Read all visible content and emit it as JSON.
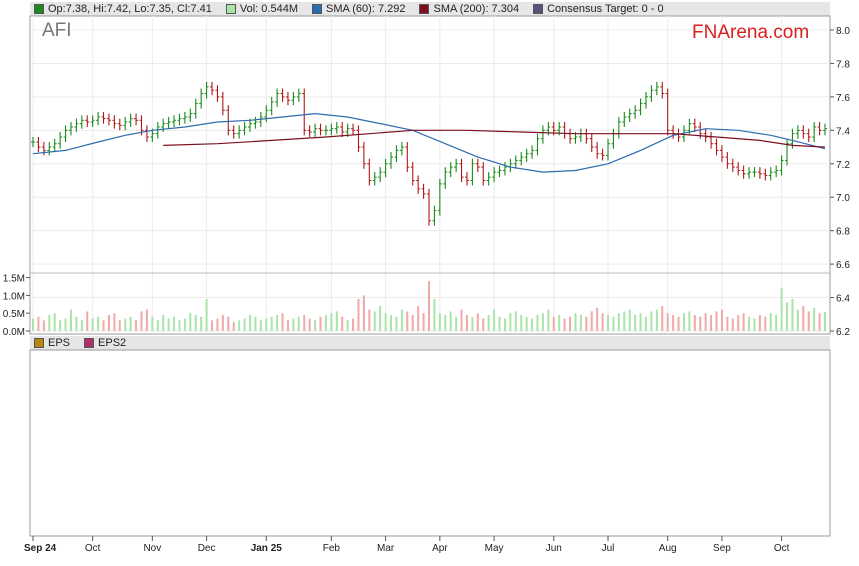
{
  "ticker": "AFI",
  "brand": "FNArena.com",
  "legend_top": [
    {
      "label": "Op:7.38, Hi:7.42, Lo:7.35, Cl:7.41",
      "color": "#1a8a1a"
    },
    {
      "label": "Vol: 0.544M",
      "color": "#a6e6a6"
    },
    {
      "label": "SMA (60): 7.292",
      "color": "#2b6cb0"
    },
    {
      "label": "SMA (200): 7.304",
      "color": "#7a1020"
    },
    {
      "label": "Consensus Target: 0 - 0",
      "color": "#555577"
    }
  ],
  "legend_bottom": [
    {
      "label": "EPS",
      "color": "#b8860b"
    },
    {
      "label": "EPS2",
      "color": "#b03070"
    }
  ],
  "chart_data": {
    "type": "line",
    "price_axis": {
      "min": 6.2,
      "max": 8.0,
      "ticks": [
        "8.0",
        "7.8",
        "7.6",
        "7.4",
        "7.2",
        "7.0",
        "6.8",
        "6.6",
        "6.4",
        "6.2"
      ]
    },
    "volume_axis": {
      "min": 0,
      "max": 1.6,
      "ticks": [
        "1.5M",
        "1.0M",
        "0.5M",
        "0.0M"
      ]
    },
    "months": [
      {
        "label": "Sep 24",
        "bold": true,
        "x": 0
      },
      {
        "label": "Oct",
        "bold": false,
        "x": 11
      },
      {
        "label": "Nov",
        "bold": false,
        "x": 22
      },
      {
        "label": "Dec",
        "bold": false,
        "x": 32
      },
      {
        "label": "Jan 25",
        "bold": true,
        "x": 43
      },
      {
        "label": "Feb",
        "bold": false,
        "x": 55
      },
      {
        "label": "Mar",
        "bold": false,
        "x": 65
      },
      {
        "label": "Apr",
        "bold": false,
        "x": 75
      },
      {
        "label": "May",
        "bold": false,
        "x": 85
      },
      {
        "label": "Jun",
        "bold": false,
        "x": 96
      },
      {
        "label": "Jul",
        "bold": false,
        "x": 106
      },
      {
        "label": "Aug",
        "bold": false,
        "x": 117
      },
      {
        "label": "Sep",
        "bold": false,
        "x": 127
      },
      {
        "label": "Oct",
        "bold": false,
        "x": 138
      }
    ],
    "x_count": 147,
    "close": [
      7.33,
      7.3,
      7.28,
      7.3,
      7.32,
      7.36,
      7.4,
      7.42,
      7.44,
      7.46,
      7.45,
      7.46,
      7.48,
      7.47,
      7.46,
      7.44,
      7.43,
      7.45,
      7.47,
      7.46,
      7.4,
      7.36,
      7.38,
      7.42,
      7.44,
      7.45,
      7.46,
      7.47,
      7.48,
      7.5,
      7.56,
      7.62,
      7.66,
      7.64,
      7.6,
      7.52,
      7.4,
      7.38,
      7.4,
      7.42,
      7.44,
      7.45,
      7.48,
      7.52,
      7.57,
      7.62,
      7.6,
      7.58,
      7.6,
      7.62,
      7.4,
      7.39,
      7.41,
      7.4,
      7.4,
      7.41,
      7.42,
      7.39,
      7.41,
      7.4,
      7.3,
      7.2,
      7.1,
      7.12,
      7.15,
      7.2,
      7.24,
      7.28,
      7.3,
      7.18,
      7.1,
      7.05,
      7.02,
      6.86,
      6.92,
      7.08,
      7.15,
      7.18,
      7.2,
      7.12,
      7.1,
      7.2,
      7.18,
      7.1,
      7.12,
      7.15,
      7.16,
      7.18,
      7.2,
      7.22,
      7.24,
      7.26,
      7.28,
      7.35,
      7.4,
      7.42,
      7.4,
      7.42,
      7.38,
      7.35,
      7.36,
      7.38,
      7.35,
      7.3,
      7.26,
      7.25,
      7.32,
      7.38,
      7.45,
      7.48,
      7.5,
      7.52,
      7.56,
      7.6,
      7.64,
      7.66,
      7.62,
      7.4,
      7.38,
      7.36,
      7.4,
      7.44,
      7.42,
      7.38,
      7.36,
      7.32,
      7.28,
      7.24,
      7.2,
      7.18,
      7.16,
      7.14,
      7.15,
      7.15,
      7.14,
      7.13,
      7.15,
      7.16,
      7.22,
      7.32,
      7.38,
      7.4,
      7.38,
      7.36,
      7.42,
      7.4,
      7.41
    ],
    "volume": [
      0.35,
      0.4,
      0.3,
      0.45,
      0.5,
      0.3,
      0.35,
      0.6,
      0.4,
      0.3,
      0.55,
      0.35,
      0.4,
      0.3,
      0.45,
      0.5,
      0.3,
      0.35,
      0.4,
      0.3,
      0.55,
      0.6,
      0.4,
      0.3,
      0.45,
      0.35,
      0.4,
      0.3,
      0.35,
      0.5,
      0.45,
      0.4,
      0.9,
      0.3,
      0.35,
      0.45,
      0.4,
      0.25,
      0.3,
      0.35,
      0.45,
      0.4,
      0.3,
      0.35,
      0.4,
      0.45,
      0.5,
      0.3,
      0.35,
      0.4,
      0.45,
      0.35,
      0.3,
      0.4,
      0.45,
      0.5,
      0.55,
      0.4,
      0.3,
      0.35,
      0.9,
      1.0,
      0.6,
      0.55,
      0.7,
      0.5,
      0.45,
      0.4,
      0.6,
      0.55,
      0.45,
      0.7,
      0.5,
      1.4,
      0.9,
      0.5,
      0.45,
      0.55,
      0.4,
      0.6,
      0.45,
      0.4,
      0.5,
      0.35,
      0.45,
      0.6,
      0.4,
      0.35,
      0.5,
      0.55,
      0.45,
      0.4,
      0.35,
      0.45,
      0.5,
      0.6,
      0.4,
      0.45,
      0.35,
      0.4,
      0.5,
      0.45,
      0.4,
      0.55,
      0.65,
      0.5,
      0.45,
      0.4,
      0.5,
      0.55,
      0.6,
      0.45,
      0.5,
      0.4,
      0.55,
      0.6,
      0.7,
      0.5,
      0.45,
      0.4,
      0.5,
      0.55,
      0.45,
      0.4,
      0.5,
      0.45,
      0.55,
      0.6,
      0.4,
      0.35,
      0.45,
      0.5,
      0.4,
      0.35,
      0.45,
      0.4,
      0.5,
      0.45,
      1.2,
      0.8,
      0.9,
      0.6,
      0.7,
      0.55,
      0.65,
      0.5,
      0.54
    ],
    "sma60": [
      [
        0,
        7.26
      ],
      [
        6,
        7.28
      ],
      [
        12,
        7.33
      ],
      [
        17,
        7.37
      ],
      [
        22,
        7.4
      ],
      [
        28,
        7.42
      ],
      [
        34,
        7.45
      ],
      [
        40,
        7.46
      ],
      [
        46,
        7.48
      ],
      [
        52,
        7.5
      ],
      [
        58,
        7.48
      ],
      [
        64,
        7.44
      ],
      [
        70,
        7.4
      ],
      [
        76,
        7.32
      ],
      [
        82,
        7.24
      ],
      [
        88,
        7.18
      ],
      [
        94,
        7.15
      ],
      [
        100,
        7.16
      ],
      [
        106,
        7.2
      ],
      [
        112,
        7.28
      ],
      [
        118,
        7.37
      ],
      [
        124,
        7.41
      ],
      [
        130,
        7.4
      ],
      [
        136,
        7.37
      ],
      [
        140,
        7.34
      ],
      [
        146,
        7.29
      ]
    ],
    "sma200": [
      [
        24,
        7.31
      ],
      [
        34,
        7.32
      ],
      [
        44,
        7.34
      ],
      [
        54,
        7.36
      ],
      [
        62,
        7.38
      ],
      [
        70,
        7.4
      ],
      [
        80,
        7.4
      ],
      [
        90,
        7.39
      ],
      [
        100,
        7.38
      ],
      [
        110,
        7.38
      ],
      [
        118,
        7.38
      ],
      [
        126,
        7.36
      ],
      [
        134,
        7.34
      ],
      [
        140,
        7.31
      ],
      [
        146,
        7.3
      ]
    ]
  }
}
